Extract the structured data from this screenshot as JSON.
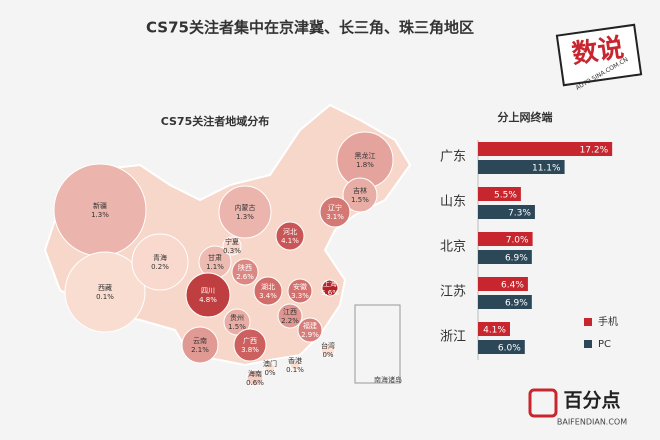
{
  "title": "CS75关注者集中在京津冀、长三角、珠三角地区",
  "logo": {
    "text": "数说",
    "sub": "AUTO.SINA.COM.CN"
  },
  "footer": {
    "brand": "百分点",
    "url": "BAIFENDIAN.COM"
  },
  "chart_data": [
    {
      "type": "map",
      "title": "CS75关注者地域分布",
      "inset_label": "南海诸岛",
      "regions": [
        "新疆",
        "西藏",
        "青海",
        "甘肃",
        "宁夏",
        "内蒙古",
        "黑龙江",
        "吉林",
        "辽宁",
        "河北",
        "陕西",
        "四川",
        "湖北",
        "安徽",
        "上海",
        "贵州",
        "江西",
        "福建",
        "广西",
        "云南",
        "海南",
        "台湾",
        "香港",
        "澳门"
      ],
      "values": [
        1.3,
        0.1,
        0.2,
        1.1,
        0.3,
        1.3,
        1.8,
        1.5,
        3.1,
        4.1,
        2.6,
        4.8,
        3.4,
        3.3,
        5.6,
        1.5,
        2.2,
        2.9,
        3.8,
        2.1,
        0.6,
        0,
        0.1,
        0
      ],
      "value_labels": [
        "1.3%",
        "0.1%",
        "0.2%",
        "1.1%",
        "0.3%",
        "1.3%",
        "1.8%",
        "1.5%",
        "3.1%",
        "4.1%",
        "2.6%",
        "4.8%",
        "3.4%",
        "3.3%",
        "5.6%",
        "1.5%",
        "2.2%",
        "2.9%",
        "3.8%",
        "2.1%",
        "0.6%",
        "0%",
        "0.1%",
        "0%"
      ]
    },
    {
      "type": "hbar",
      "title": "分上网终端",
      "categories": [
        "广东",
        "山东",
        "北京",
        "江苏",
        "浙江"
      ],
      "xlim": [
        0,
        20
      ],
      "legend": "bottom-right",
      "series": [
        {
          "name": "手机",
          "color": "#c8262e",
          "values": [
            17.2,
            5.5,
            7.0,
            6.4,
            4.1
          ],
          "value_labels": [
            "17.2%",
            "5.5%",
            "7.0%",
            "6.4%",
            "4.1%"
          ]
        },
        {
          "name": "PC",
          "color": "#2c4858",
          "values": [
            11.1,
            7.3,
            6.9,
            6.9,
            6.0
          ],
          "value_labels": [
            "11.1%",
            "7.3%",
            "6.9%",
            "6.9%",
            "6.0%"
          ]
        }
      ]
    }
  ]
}
